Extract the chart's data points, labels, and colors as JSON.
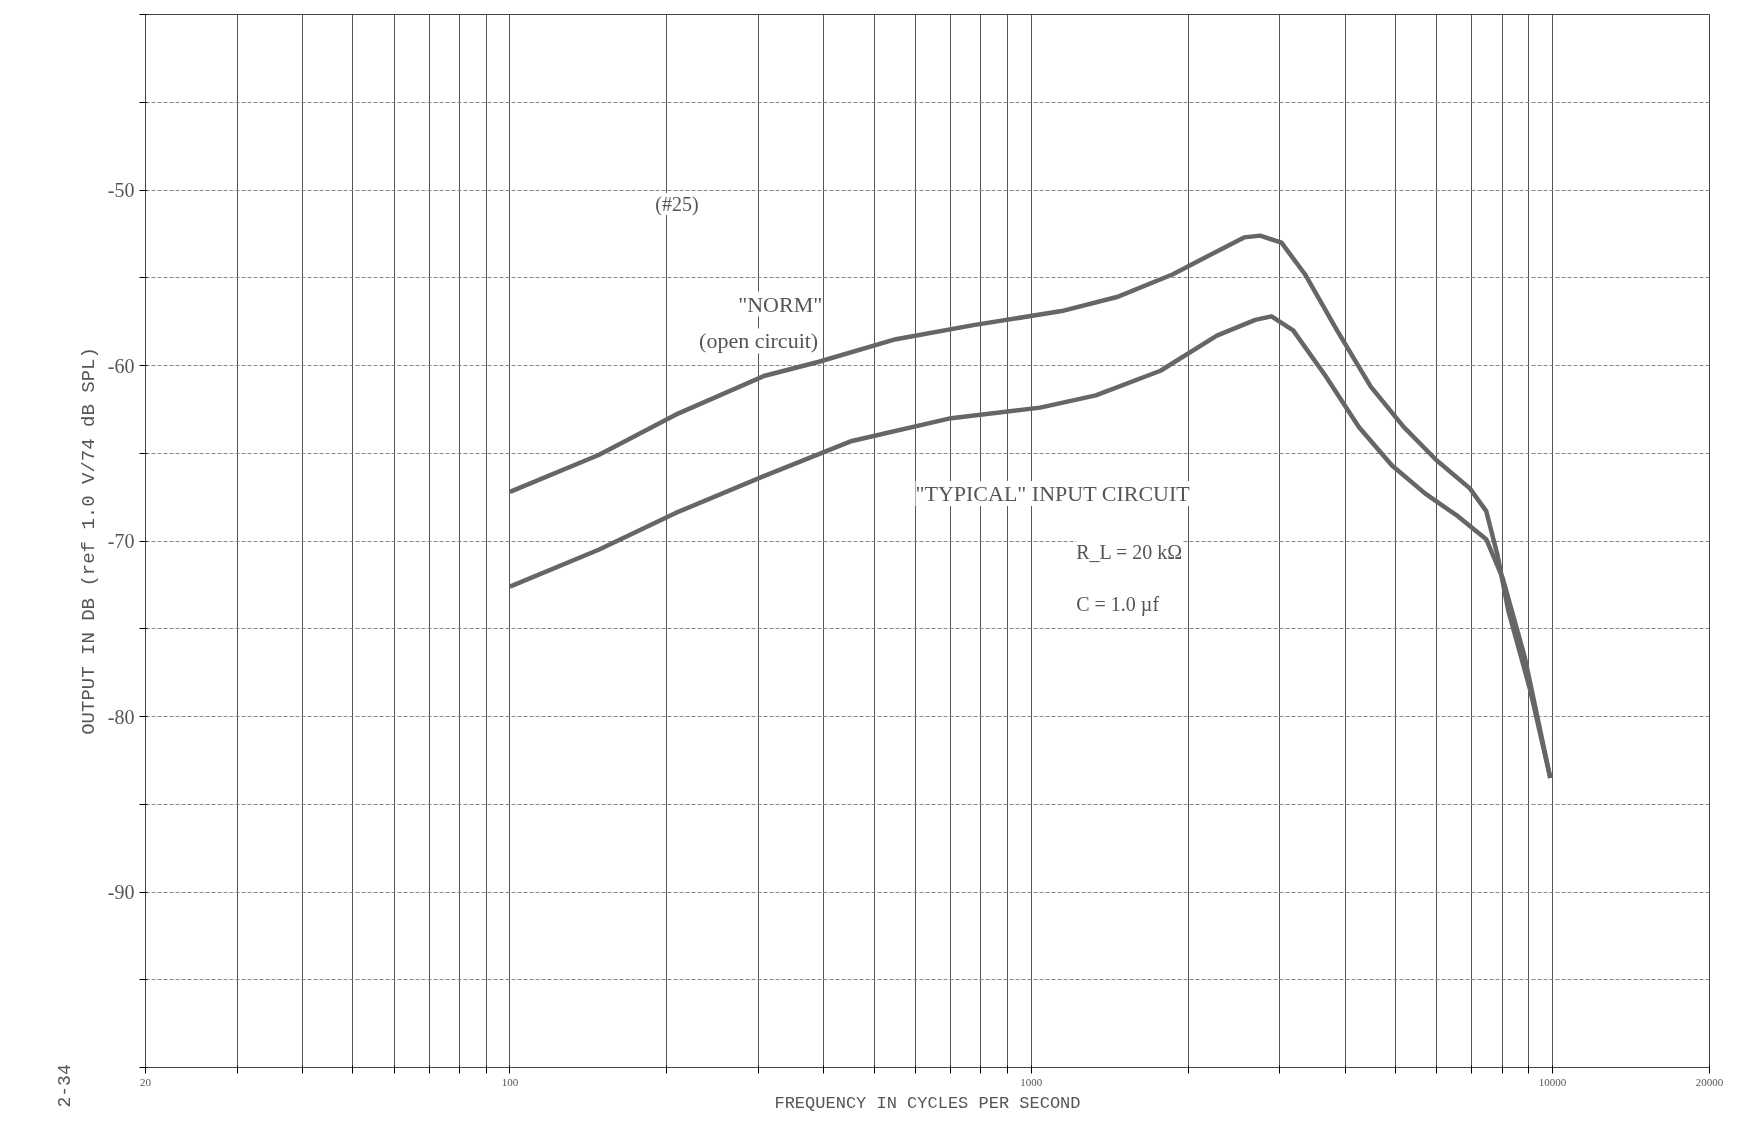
{
  "chart_data": {
    "type": "line",
    "xlabel": "FREQUENCY IN CYCLES PER SECOND",
    "ylabel": "OUTPUT IN DB (ref 1.0 V/74 dB SPL)",
    "log": "x",
    "grid": true,
    "line_style": "solid",
    "xlim": [
      20,
      20000
    ],
    "ylim": [
      -100,
      -40
    ],
    "xticks": [
      {
        "value": 20,
        "label": "20"
      },
      {
        "value": 30,
        "label": null
      },
      {
        "value": 40,
        "label": null
      },
      {
        "value": 50,
        "label": null
      },
      {
        "value": 60,
        "label": null
      },
      {
        "value": 70,
        "label": null
      },
      {
        "value": 80,
        "label": null
      },
      {
        "value": 90,
        "label": null
      },
      {
        "value": 100,
        "label": "100"
      },
      {
        "value": 200,
        "label": null
      },
      {
        "value": 300,
        "label": null
      },
      {
        "value": 400,
        "label": null
      },
      {
        "value": 500,
        "label": null
      },
      {
        "value": 600,
        "label": null
      },
      {
        "value": 700,
        "label": null
      },
      {
        "value": 800,
        "label": null
      },
      {
        "value": 900,
        "label": null
      },
      {
        "value": 1000,
        "label": "1000"
      },
      {
        "value": 2000,
        "label": null
      },
      {
        "value": 3000,
        "label": null
      },
      {
        "value": 4000,
        "label": null
      },
      {
        "value": 5000,
        "label": null
      },
      {
        "value": 6000,
        "label": null
      },
      {
        "value": 7000,
        "label": null
      },
      {
        "value": 8000,
        "label": null
      },
      {
        "value": 9000,
        "label": null
      },
      {
        "value": 10000,
        "label": "10000"
      },
      {
        "value": 20000,
        "label": "20000"
      }
    ],
    "yticks": [
      {
        "value": -100,
        "label": null
      },
      {
        "value": -95,
        "label": null
      },
      -90,
      {
        "value": -85,
        "label": null
      },
      -80,
      {
        "value": -75,
        "label": null
      },
      -70,
      {
        "value": -65,
        "label": null
      },
      -60,
      {
        "value": -55,
        "label": null
      },
      -50,
      {
        "value": -45,
        "label": null
      },
      {
        "value": -40,
        "label": null
      }
    ],
    "series": [
      {
        "color": "#666666",
        "x": [
          100,
          148,
          208,
          307,
          390,
          550,
          775,
          1144,
          1460,
          1870,
          2270,
          2560,
          2750,
          3020,
          3350,
          3860,
          4480,
          5180,
          5990,
          6940,
          7460,
          7840,
          8230,
          9060,
          9900
        ],
        "values": [
          -67.2,
          -65.1,
          -62.8,
          -60.6,
          -59.8,
          -58.5,
          -57.7,
          -56.9,
          -56.1,
          -54.8,
          -53.5,
          -52.7,
          -52.6,
          -53.0,
          -54.8,
          -58.0,
          -61.2,
          -63.5,
          -65.4,
          -67.0,
          -68.3,
          -70.8,
          -74.0,
          -78.5,
          -83.5
        ]
      },
      {
        "color": "#666666",
        "x": [
          100,
          148,
          208,
          307,
          453,
          702,
          1040,
          1330,
          1770,
          2270,
          2690,
          2890,
          3180,
          3670,
          4250,
          4920,
          5700,
          6590,
          7460,
          8020,
          8840,
          9900
        ],
        "values": [
          -72.6,
          -70.5,
          -68.4,
          -66.3,
          -64.3,
          -63.0,
          -62.4,
          -61.7,
          -60.3,
          -58.3,
          -57.4,
          -57.2,
          -58.0,
          -60.6,
          -63.5,
          -65.7,
          -67.3,
          -68.6,
          -69.9,
          -72.1,
          -76.6,
          -83.5
        ]
      }
    ],
    "annotations": [
      "(#25)",
      "\"NORM\"",
      "(open circuit)",
      "\"TYPICAL\" INPUT CIRCUIT",
      "R_L = 20 kΩ",
      "C = 1.0 µf",
      "2-34"
    ]
  }
}
